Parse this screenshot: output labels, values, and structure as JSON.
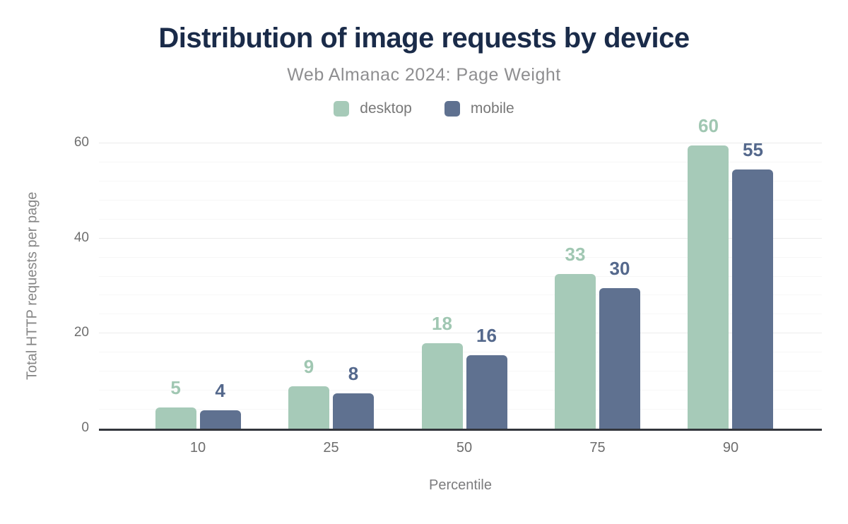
{
  "chart_data": {
    "type": "bar",
    "title": "Distribution of image requests by device",
    "subtitle": "Web Almanac 2024: Page Weight",
    "categories": [
      "10",
      "25",
      "50",
      "75",
      "90"
    ],
    "series": [
      {
        "name": "desktop",
        "color": "#a6cab8",
        "label_color": "#a0c7b2",
        "data_labels": [
          5,
          9,
          18,
          33,
          60
        ],
        "values": [
          4.5,
          8.9,
          17.9,
          32.5,
          59.5
        ]
      },
      {
        "name": "mobile",
        "color": "#5f7190",
        "label_color": "#54688c",
        "data_labels": [
          4,
          8,
          16,
          30,
          55
        ],
        "values": [
          3.8,
          7.5,
          15.5,
          29.5,
          54.5
        ]
      }
    ],
    "xlabel": "Percentile",
    "ylabel": "Total HTTP requests per page",
    "ylim": [
      0,
      60
    ],
    "yticks": [
      0,
      20,
      40,
      60
    ],
    "minor_grid_step": 4,
    "grid": "horizontal, major + minor, on",
    "legend_position": "top-center"
  },
  "colors": {
    "background": "#ffffff",
    "title": "#1a2b49",
    "subtitle": "#8e8e90",
    "legend_text": "#787878",
    "tick_text": "#6e6e6e",
    "axis_title_text": "#868686",
    "axis_line": "#33363c",
    "major_gridline": "#ebebeb",
    "minor_gridline": "#f7f7f7",
    "desktop_bar": "#a6cab8",
    "mobile_bar": "#5f7190"
  }
}
